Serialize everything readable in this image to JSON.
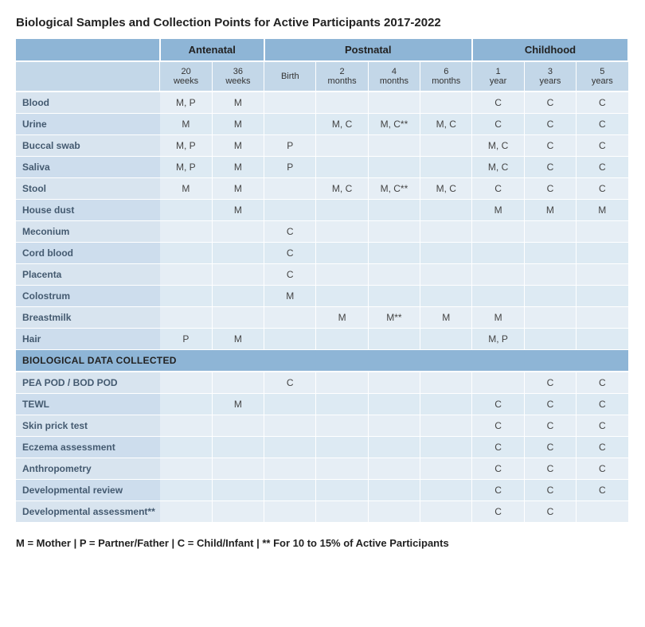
{
  "title": "Biological Samples and Collection Points for Active Participants 2017-2022",
  "groups": [
    {
      "label": "",
      "span": 1
    },
    {
      "label": "Antenatal",
      "span": 2
    },
    {
      "label": "Postnatal",
      "span": 4
    },
    {
      "label": "Childhood",
      "span": 3
    }
  ],
  "timepoints": [
    "20 weeks",
    "36 weeks",
    "Birth",
    "2 months",
    "4 months",
    "6 months",
    "1 year",
    "3 years",
    "5 years"
  ],
  "rows": [
    {
      "label": "Blood",
      "cells": [
        "M, P",
        "M",
        "",
        "",
        "",
        "",
        "C",
        "C",
        "C"
      ]
    },
    {
      "label": "Urine",
      "cells": [
        "M",
        "M",
        "",
        "M, C",
        "M, C**",
        "M, C",
        "C",
        "C",
        "C"
      ]
    },
    {
      "label": "Buccal swab",
      "cells": [
        "M, P",
        "M",
        "P",
        "",
        "",
        "",
        "M, C",
        "C",
        "C"
      ]
    },
    {
      "label": "Saliva",
      "cells": [
        "M, P",
        "M",
        "P",
        "",
        "",
        "",
        "M, C",
        "C",
        "C"
      ]
    },
    {
      "label": "Stool",
      "cells": [
        "M",
        "M",
        "",
        "M, C",
        "M, C**",
        "M, C",
        "C",
        "C",
        "C"
      ]
    },
    {
      "label": "House dust",
      "cells": [
        "",
        "M",
        "",
        "",
        "",
        "",
        "M",
        "M",
        "M"
      ]
    },
    {
      "label": "Meconium",
      "cells": [
        "",
        "",
        "C",
        "",
        "",
        "",
        "",
        "",
        ""
      ]
    },
    {
      "label": "Cord blood",
      "cells": [
        "",
        "",
        "C",
        "",
        "",
        "",
        "",
        "",
        ""
      ]
    },
    {
      "label": "Placenta",
      "cells": [
        "",
        "",
        "C",
        "",
        "",
        "",
        "",
        "",
        ""
      ]
    },
    {
      "label": "Colostrum",
      "cells": [
        "",
        "",
        "M",
        "",
        "",
        "",
        "",
        "",
        ""
      ]
    },
    {
      "label": "Breastmilk",
      "cells": [
        "",
        "",
        "",
        "M",
        "M**",
        "M",
        "M",
        "",
        ""
      ]
    },
    {
      "label": "Hair",
      "cells": [
        "P",
        "M",
        "",
        "",
        "",
        "",
        "M, P",
        "",
        ""
      ]
    }
  ],
  "section2_label": "BIOLOGICAL DATA COLLECTED",
  "rows2": [
    {
      "label": "PEA POD / BOD POD",
      "cells": [
        "",
        "",
        "C",
        "",
        "",
        "",
        "",
        "C",
        "C"
      ]
    },
    {
      "label": "TEWL",
      "cells": [
        "",
        "M",
        "",
        "",
        "",
        "",
        "C",
        "C",
        "C"
      ]
    },
    {
      "label": "Skin prick test",
      "cells": [
        "",
        "",
        "",
        "",
        "",
        "",
        "C",
        "C",
        "C"
      ]
    },
    {
      "label": "Eczema assessment",
      "cells": [
        "",
        "",
        "",
        "",
        "",
        "",
        "C",
        "C",
        "C"
      ]
    },
    {
      "label": "Anthropometry",
      "cells": [
        "",
        "",
        "",
        "",
        "",
        "",
        "C",
        "C",
        "C"
      ]
    },
    {
      "label": "Developmental review",
      "cells": [
        "",
        "",
        "",
        "",
        "",
        "",
        "C",
        "C",
        "C"
      ]
    },
    {
      "label": "Developmental assessment**",
      "cells": [
        "",
        "",
        "",
        "",
        "",
        "",
        "C",
        "C",
        ""
      ]
    }
  ],
  "legend": "M = Mother | P = Partner/Father | C = Child/Infant | ** For 10 to 15% of Active Participants",
  "colors": {
    "group_header_bg": "#8eb5d6",
    "sub_header_bg": "#c3d7e8",
    "row_label_bg": "#d8e4ef",
    "row_label_bg_alt": "#cddded",
    "cell_bg": "#e6eef5",
    "cell_bg_alt": "#ddeaf3"
  }
}
